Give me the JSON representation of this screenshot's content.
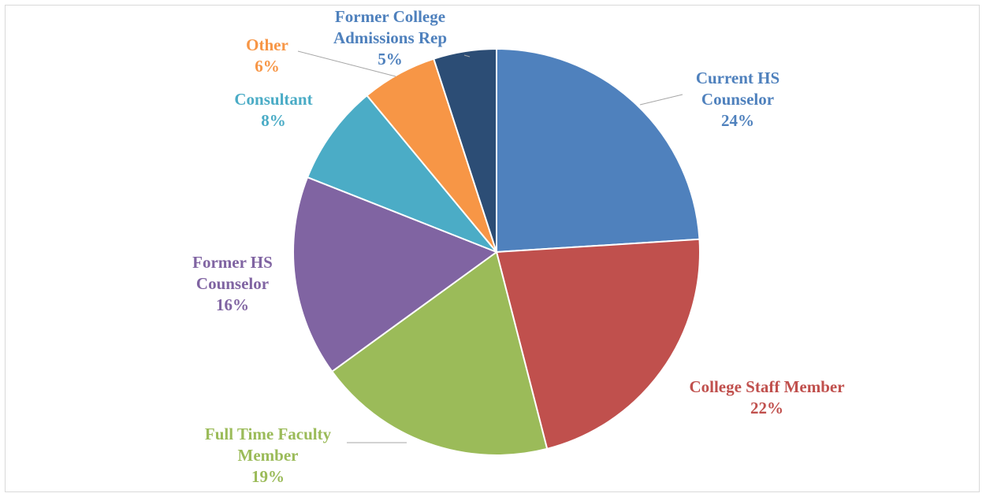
{
  "chart_data": {
    "type": "pie",
    "title": "",
    "start_angle_deg": 0,
    "direction": "clockwise",
    "slices": [
      {
        "label_lines": [
          "Current HS",
          "Counselor"
        ],
        "value_label": "24%",
        "value": 24,
        "color": "#4f81bd"
      },
      {
        "label_lines": [
          "College Staff Member"
        ],
        "value_label": "22%",
        "value": 22,
        "color": "#c0504d"
      },
      {
        "label_lines": [
          "Full Time Faculty",
          "Member"
        ],
        "value_label": "19%",
        "value": 19,
        "color": "#9bbb59"
      },
      {
        "label_lines": [
          "Former HS",
          "Counselor"
        ],
        "value_label": "16%",
        "value": 16,
        "color": "#8064a2"
      },
      {
        "label_lines": [
          "Consultant"
        ],
        "value_label": "8%",
        "value": 8,
        "color": "#4bacc6"
      },
      {
        "label_lines": [
          "Other"
        ],
        "value_label": "6%",
        "value": 6,
        "color": "#f79646"
      },
      {
        "label_lines": [
          "Former College",
          "Admissions Rep"
        ],
        "value_label": "5%",
        "value": 5,
        "color": "#2c4d75"
      }
    ],
    "label_colors": [
      "#4f81bd",
      "#c0504d",
      "#9bbb59",
      "#8064a2",
      "#4bacc6",
      "#f79646",
      "#4f81bd"
    ],
    "legend": "none"
  }
}
